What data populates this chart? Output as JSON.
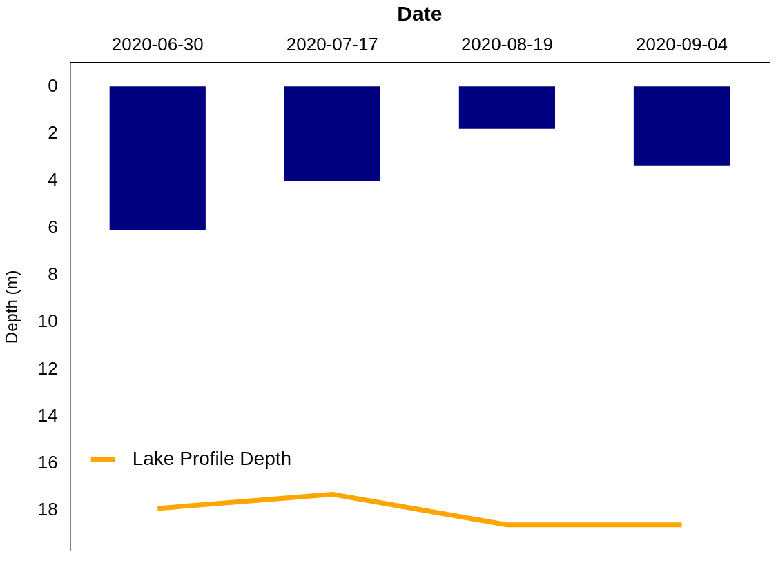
{
  "chart_data": {
    "type": "bar",
    "xlabel": "Date",
    "ylabel": "Depth (m)",
    "categories": [
      "2020-06-30",
      "2020-07-17",
      "2020-08-19",
      "2020-09-04"
    ],
    "series": [
      {
        "color": "#000080",
        "values": [
          6.1,
          4.0,
          1.8,
          3.35
        ]
      },
      {
        "type": "line",
        "name": "Lake Profile Depth",
        "color": "#ffa500",
        "values": [
          17.9,
          17.3,
          18.6,
          18.6
        ]
      }
    ],
    "ylim": [
      19.7,
      -1
    ],
    "yticks": [
      0,
      2,
      4,
      6,
      8,
      10,
      12,
      14,
      16,
      18
    ],
    "grid": false,
    "legend": "bottom left",
    "marker": "none",
    "line_style": "solid"
  }
}
